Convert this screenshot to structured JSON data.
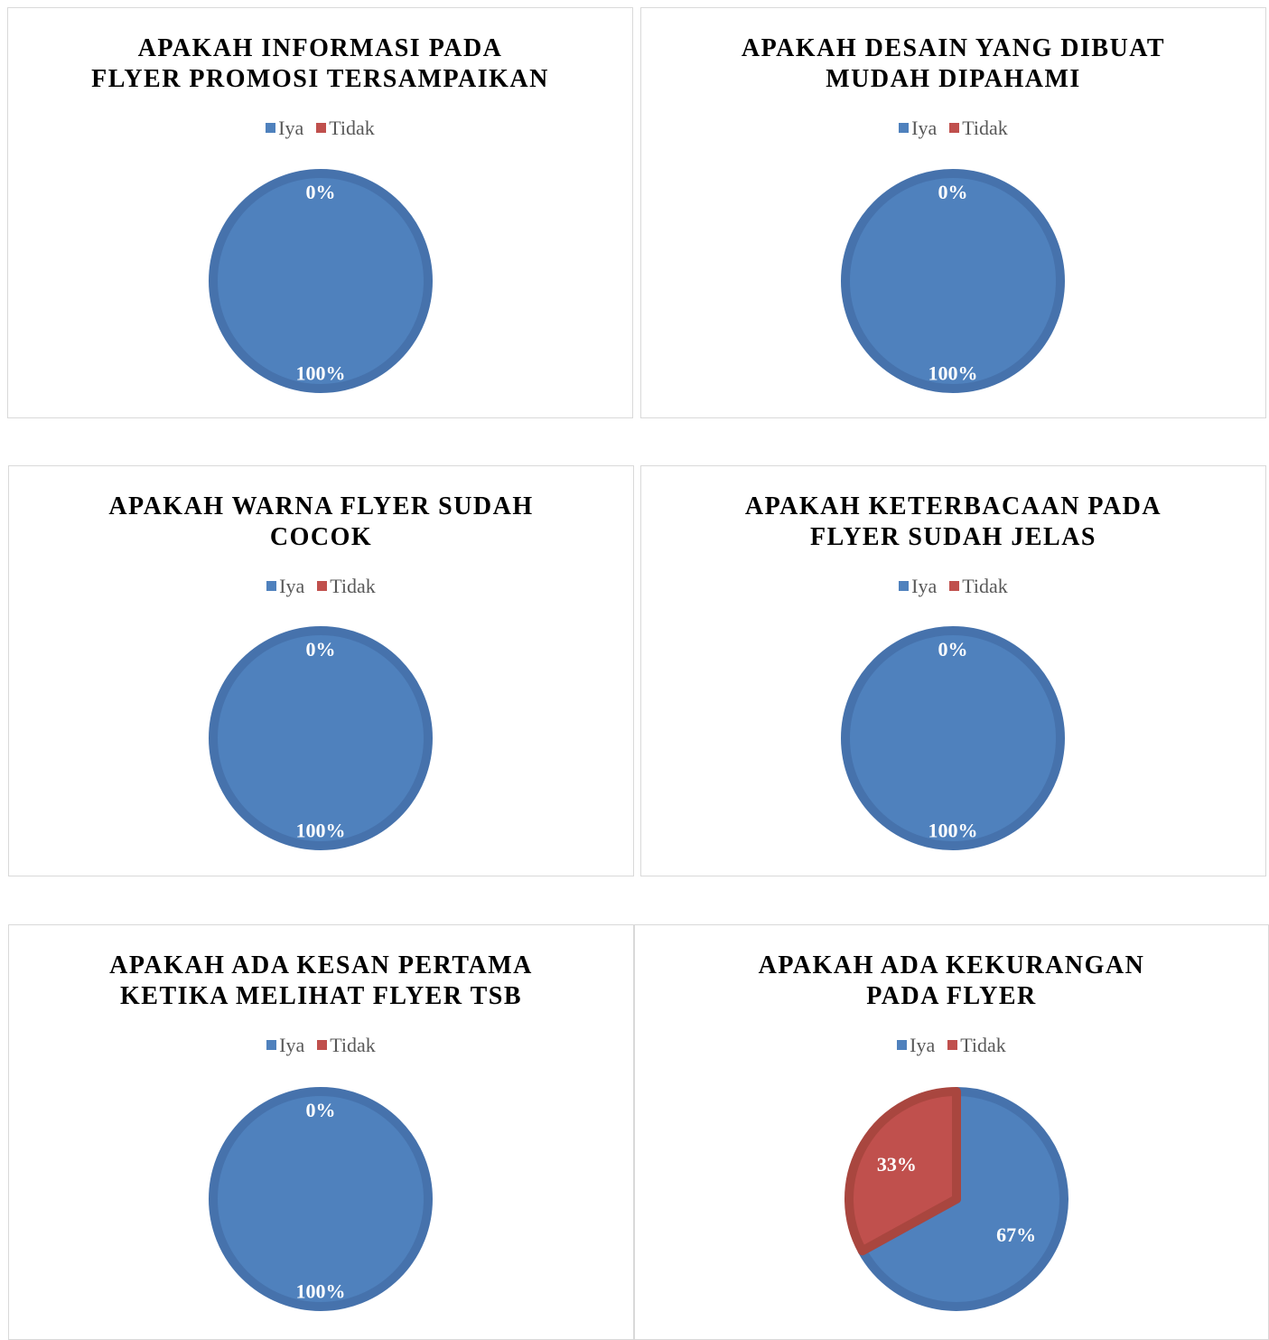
{
  "colors": {
    "iya": "#4F81BD",
    "tidak": "#C0504D",
    "iya_edge": "#4672AC",
    "tidak_edge": "#A9463F"
  },
  "chart_data": [
    {
      "type": "pie",
      "title": "APAKAH INFORMASI PADA FLYER PROMOSI TERSAMPAIKAN",
      "title_lines": [
        "APAKAH INFORMASI PADA",
        "FLYER PROMOSI TERSAMPAIKAN"
      ],
      "legend": [
        "Iya",
        "Tidak"
      ],
      "categories": [
        "Iya",
        "Tidak"
      ],
      "values": [
        100,
        0
      ],
      "data_labels": [
        "100%",
        "0%"
      ]
    },
    {
      "type": "pie",
      "title": "APAKAH DESAIN YANG DIBUAT MUDAH DIPAHAMI",
      "title_lines": [
        "APAKAH DESAIN YANG DIBUAT",
        "MUDAH DIPAHAMI"
      ],
      "legend": [
        "Iya",
        "Tidak"
      ],
      "categories": [
        "Iya",
        "Tidak"
      ],
      "values": [
        100,
        0
      ],
      "data_labels": [
        "100%",
        "0%"
      ]
    },
    {
      "type": "pie",
      "title": "APAKAH WARNA FLYER SUDAH COCOK",
      "title_lines": [
        "APAKAH WARNA FLYER SUDAH",
        "COCOK"
      ],
      "legend": [
        "Iya",
        "Tidak"
      ],
      "categories": [
        "Iya",
        "Tidak"
      ],
      "values": [
        100,
        0
      ],
      "data_labels": [
        "100%",
        "0%"
      ]
    },
    {
      "type": "pie",
      "title": "APAKAH KETERBACAAN PADA FLYER SUDAH JELAS",
      "title_lines": [
        "APAKAH KETERBACAAN PADA",
        "FLYER SUDAH JELAS"
      ],
      "legend": [
        "Iya",
        "Tidak"
      ],
      "categories": [
        "Iya",
        "Tidak"
      ],
      "values": [
        100,
        0
      ],
      "data_labels": [
        "100%",
        "0%"
      ]
    },
    {
      "type": "pie",
      "title": "APAKAH ADA KESAN PERTAMA KETIKA MELIHAT FLYER TSB",
      "title_lines": [
        "APAKAH ADA KESAN PERTAMA",
        "KETIKA MELIHAT FLYER TSB"
      ],
      "legend": [
        "Iya",
        "Tidak"
      ],
      "categories": [
        "Iya",
        "Tidak"
      ],
      "values": [
        100,
        0
      ],
      "data_labels": [
        "100%",
        "0%"
      ]
    },
    {
      "type": "pie",
      "title": "APAKAH ADA KEKURANGAN PADA FLYER",
      "title_lines": [
        "APAKAH ADA KEKURANGAN",
        "PADA FLYER"
      ],
      "legend": [
        "Iya",
        "Tidak"
      ],
      "categories": [
        "Iya",
        "Tidak"
      ],
      "values": [
        67,
        33
      ],
      "data_labels": [
        "67%",
        "33%"
      ]
    }
  ]
}
